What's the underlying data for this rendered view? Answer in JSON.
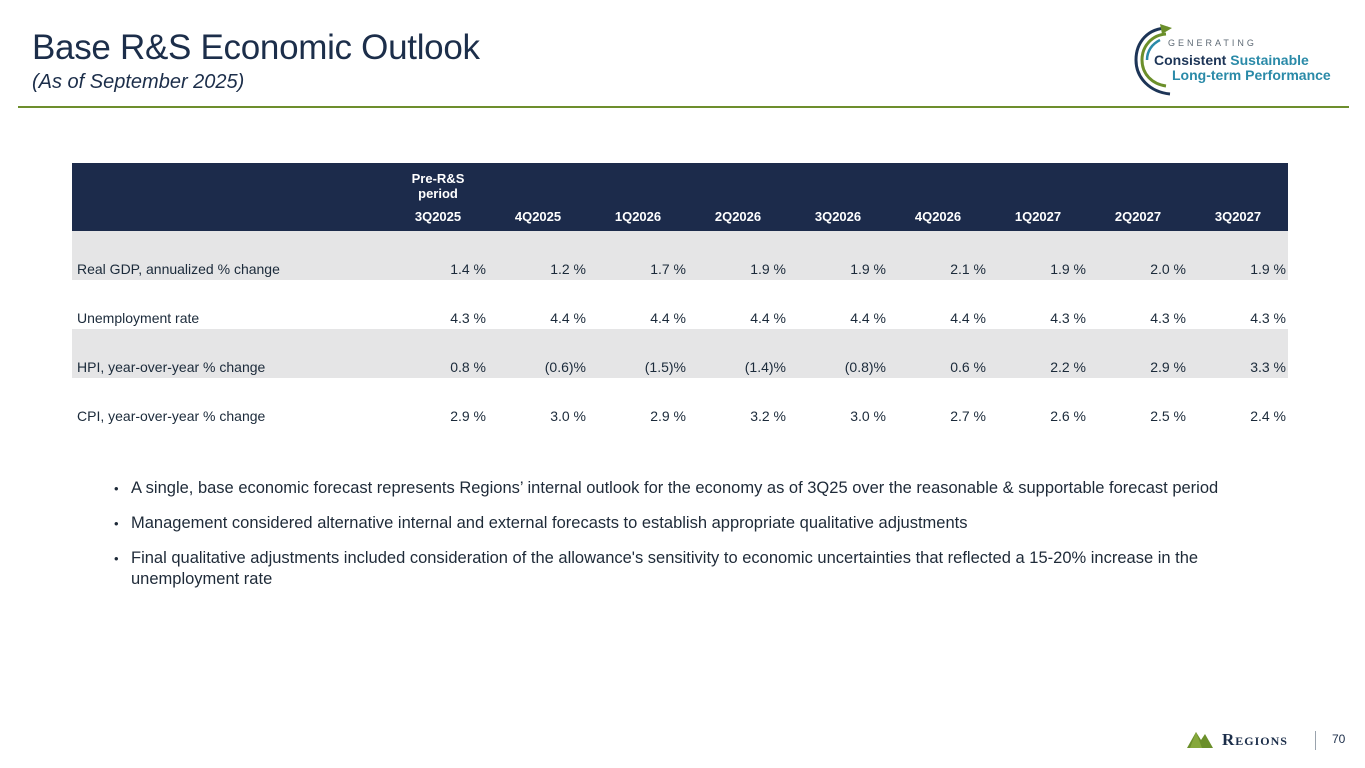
{
  "header": {
    "title": "Base R&S Economic Outlook",
    "subtitle": "(As of September 2025)"
  },
  "logo": {
    "generating": "GENERATING",
    "consistent": "Consistent",
    "sustainable": "Sustainable",
    "long_term": "Long-term Performance"
  },
  "colors": {
    "header_bg": "#1c2b4b",
    "rule": "#6d8e2d",
    "row_shade": "#e5e5e6",
    "logo_green": "#6b8f2a",
    "logo_teal": "#2a8aa8"
  },
  "table": {
    "pre_rs_label": "Pre-R&S period",
    "periods": [
      "3Q2025",
      "4Q2025",
      "1Q2026",
      "2Q2026",
      "3Q2026",
      "4Q2026",
      "1Q2027",
      "2Q2027",
      "3Q2027"
    ],
    "rows": [
      {
        "label": "Real GDP, annualized % change",
        "values": [
          "1.4 %",
          "1.2 %",
          "1.7 %",
          "1.9 %",
          "1.9 %",
          "2.1 %",
          "1.9 %",
          "2.0 %",
          "1.9 %"
        ]
      },
      {
        "label": "Unemployment rate",
        "values": [
          "4.3 %",
          "4.4 %",
          "4.4 %",
          "4.4 %",
          "4.4 %",
          "4.4 %",
          "4.3 %",
          "4.3 %",
          "4.3 %"
        ]
      },
      {
        "label": "HPI, year-over-year % change",
        "values": [
          "0.8 %",
          "(0.6)%",
          "(1.5)%",
          "(1.4)%",
          "(0.8)%",
          "0.6 %",
          "2.2 %",
          "2.9 %",
          "3.3 %"
        ]
      },
      {
        "label": "CPI, year-over-year % change",
        "values": [
          "2.9 %",
          "3.0 %",
          "2.9 %",
          "3.2 %",
          "3.0 %",
          "2.7 %",
          "2.6 %",
          "2.5 %",
          "2.4 %"
        ]
      }
    ]
  },
  "bullets": [
    "A single, base economic forecast represents Regions’ internal outlook for the economy as of 3Q25 over the reasonable & supportable forecast period",
    "Management considered alternative internal and external forecasts to establish appropriate qualitative adjustments",
    "Final qualitative adjustments included consideration of the allowance's sensitivity to economic uncertainties that reflected a 15-20% increase in the unemployment rate"
  ],
  "footer": {
    "brand": "Regions",
    "page_number": "70"
  }
}
